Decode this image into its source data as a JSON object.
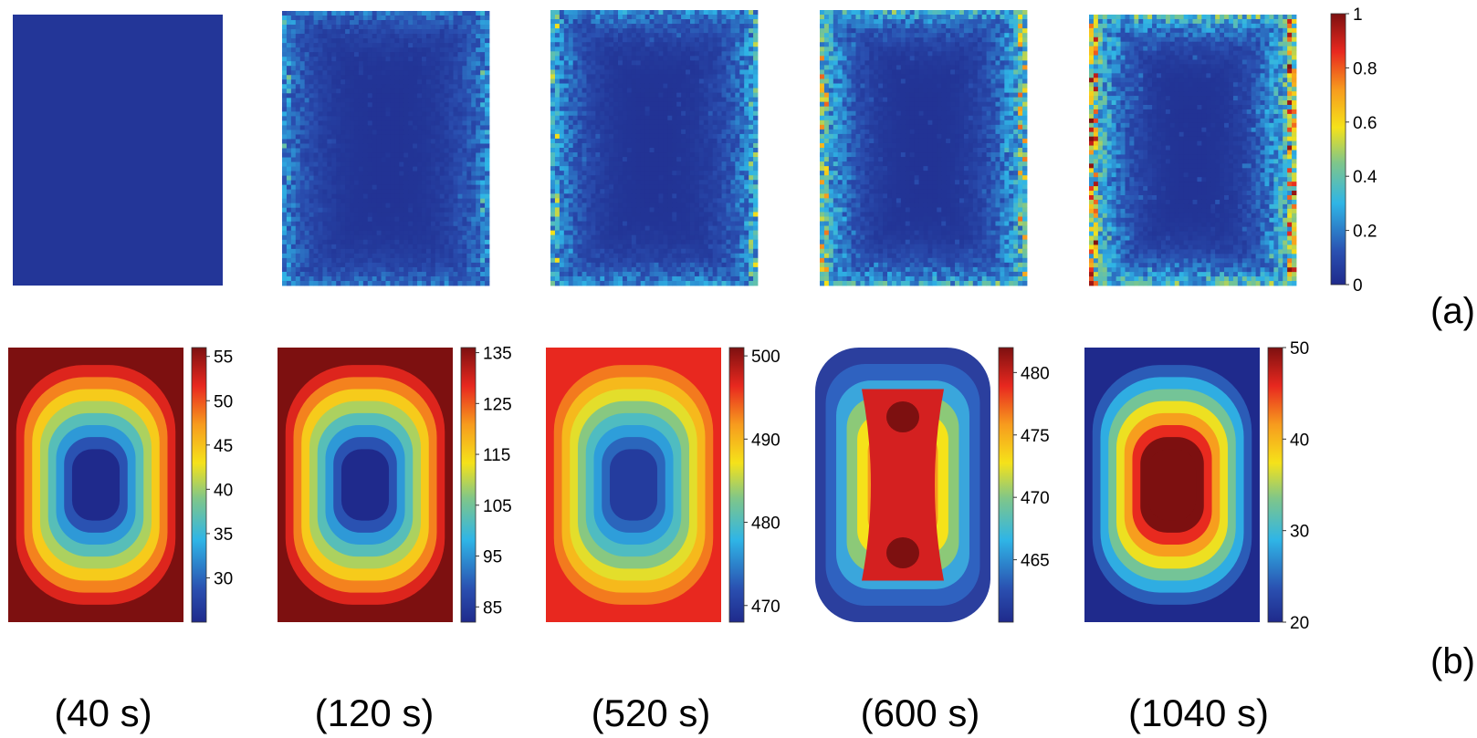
{
  "figure": {
    "panel_labels": [
      "(a)",
      "(b)"
    ],
    "time_labels": [
      "(40 s)",
      "(120 s)",
      "(520 s)",
      "(600 s)",
      "(1040 s)"
    ]
  },
  "chart_data": [
    {
      "type": "heatmap",
      "row": "a",
      "title": "",
      "description_note": "Noisy damage/probability maps at five times; shared colorbar",
      "colorbar": {
        "min": 0,
        "max": 1,
        "ticks": [
          0,
          0.2,
          0.4,
          0.6,
          0.8,
          1
        ]
      },
      "panels": [
        {
          "time": "40 s",
          "max_value": 0.0
        },
        {
          "time": "120 s",
          "max_value": 0.45
        },
        {
          "time": "520 s",
          "max_value": 0.6
        },
        {
          "time": "600 s",
          "max_value": 0.8
        },
        {
          "time": "1040 s",
          "max_value": 1.0
        }
      ]
    },
    {
      "type": "heatmap",
      "row": "b",
      "title": "",
      "description_note": "Smooth filled-contour temperature fields at five times, each with own colorbar",
      "panels": [
        {
          "time": "40 s",
          "min": 25,
          "max": 56,
          "ticks": [
            30,
            35,
            40,
            45,
            50,
            55
          ],
          "pattern": "hot-edges"
        },
        {
          "time": "120 s",
          "min": 82,
          "max": 136,
          "ticks": [
            85,
            95,
            105,
            115,
            125,
            135
          ],
          "pattern": "hot-edges"
        },
        {
          "time": "520 s",
          "min": 468,
          "max": 501,
          "ticks": [
            470,
            480,
            490,
            500
          ],
          "pattern": "hot-edges"
        },
        {
          "time": "600 s",
          "min": 460,
          "max": 482,
          "ticks": [
            465,
            470,
            475,
            480
          ],
          "pattern": "two-hot-spots"
        },
        {
          "time": "1040 s",
          "min": 20,
          "max": 50,
          "ticks": [
            20,
            30,
            40,
            50
          ],
          "pattern": "hot-center"
        }
      ]
    }
  ]
}
